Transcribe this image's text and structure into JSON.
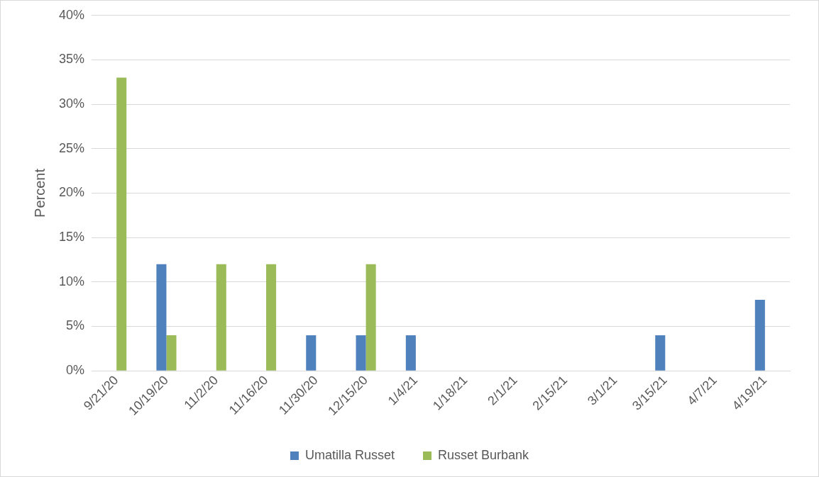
{
  "chart_data": {
    "type": "bar",
    "ylabel": "Percent",
    "categories": [
      "9/21/20",
      "10/19/20",
      "11/2/20",
      "11/16/20",
      "11/30/20",
      "12/15/20",
      "1/4/21",
      "1/18/21",
      "2/1/21",
      "2/15/21",
      "3/1/21",
      "3/15/21",
      "4/7/21",
      "4/19/21"
    ],
    "series": [
      {
        "name": "Umatilla Russet",
        "color": "#4f81bd",
        "values": [
          0,
          12,
          0,
          0,
          4,
          4,
          4,
          0,
          0,
          0,
          0,
          4,
          0,
          8
        ]
      },
      {
        "name": "Russet Burbank",
        "color": "#9bbb59",
        "values": [
          33,
          4,
          12,
          12,
          0,
          12,
          0,
          0,
          0,
          0,
          0,
          0,
          0,
          0
        ]
      }
    ],
    "ylim": [
      0,
      40
    ],
    "yticks": [
      {
        "value": 0,
        "label": "0%"
      },
      {
        "value": 5,
        "label": "5%"
      },
      {
        "value": 10,
        "label": "10%"
      },
      {
        "value": 15,
        "label": "15%"
      },
      {
        "value": 20,
        "label": "20%"
      },
      {
        "value": 25,
        "label": "25%"
      },
      {
        "value": 30,
        "label": "30%"
      },
      {
        "value": 35,
        "label": "35%"
      },
      {
        "value": 40,
        "label": "40%"
      }
    ],
    "grid": "y",
    "legend": "bottom"
  }
}
